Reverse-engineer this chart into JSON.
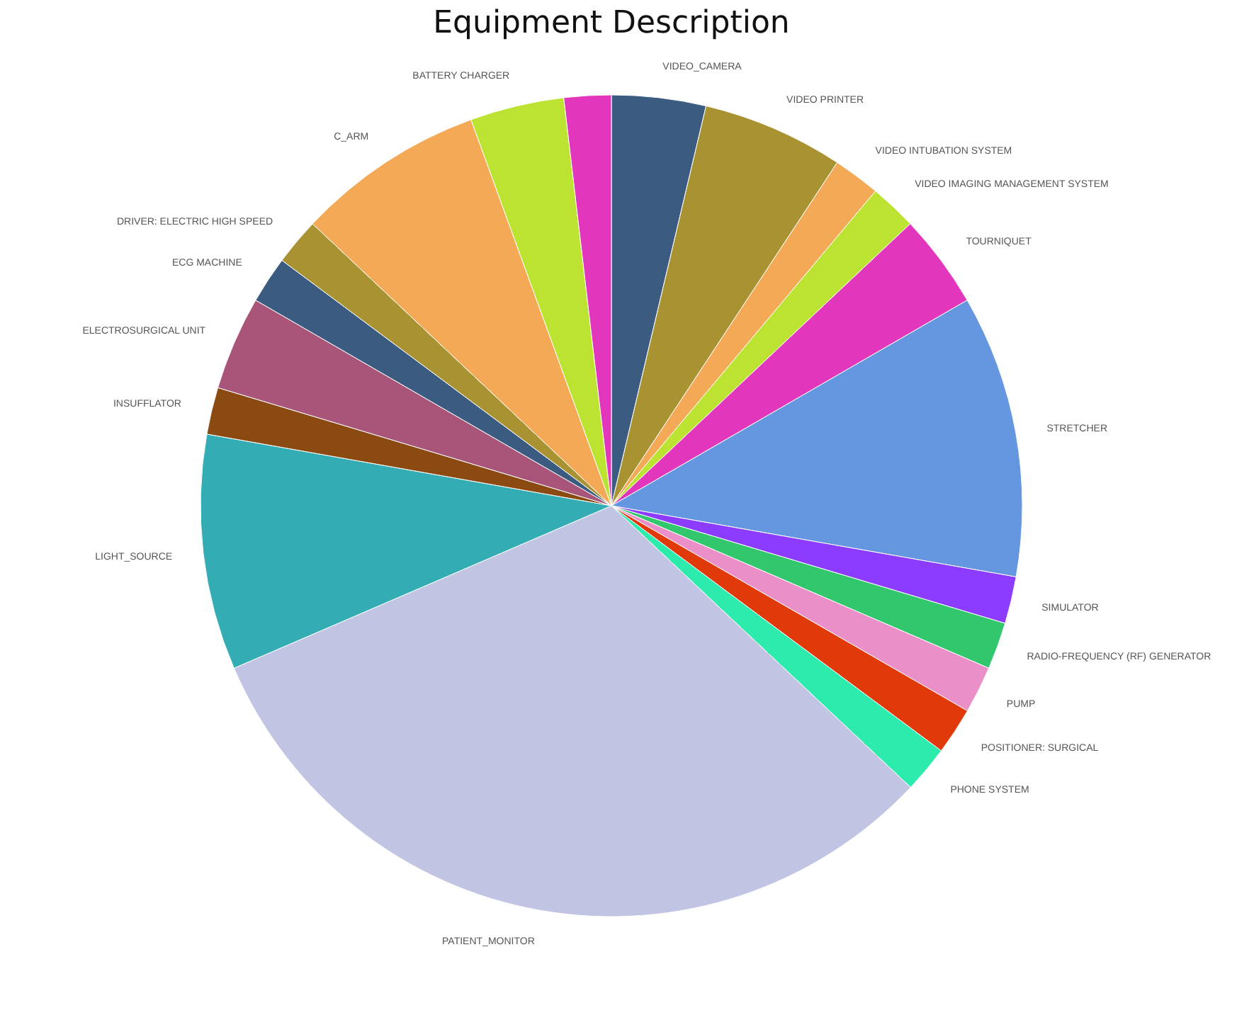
{
  "chart_data": {
    "type": "pie",
    "title": "Equipment Description",
    "categories": [
      "VIDEO_CAMERA",
      "VIDEO PRINTER",
      "VIDEO INTUBATION SYSTEM",
      "VIDEO IMAGING MANAGEMENT SYSTEM",
      "TOURNIQUET",
      "STRETCHER",
      "SIMULATOR",
      "RADIO-FREQUENCY (RF) GENERATOR",
      "PUMP",
      "POSITIONER: SURGICAL",
      "PHONE SYSTEM",
      "PATIENT_MONITOR",
      "LIGHT_SOURCE",
      "INSUFFLATOR",
      "ELECTROSURGICAL UNIT",
      "ECG MACHINE",
      "DRIVER: ELECTRIC HIGH SPEED",
      "C_ARM",
      "BATTERY CHARGER",
      null
    ],
    "values": [
      3.7,
      5.56,
      1.85,
      1.85,
      3.7,
      11.11,
      1.85,
      1.85,
      1.85,
      1.85,
      1.85,
      31.51,
      9.26,
      1.85,
      3.7,
      1.85,
      1.85,
      7.41,
      3.7,
      1.85
    ],
    "colors": [
      "#3b5b80",
      "#a89232",
      "#f4a957",
      "#bce331",
      "#e236bd",
      "#6497e0",
      "#8b3cff",
      "#33c76d",
      "#ea8fc8",
      "#e03a0a",
      "#2debac",
      "#c2c4e3",
      "#33adb3",
      "#8a4a12",
      "#a9557a",
      "#3b5b80",
      "#a89232",
      "#f4a957",
      "#bce331",
      "#e236bd"
    ],
    "legend": false
  }
}
